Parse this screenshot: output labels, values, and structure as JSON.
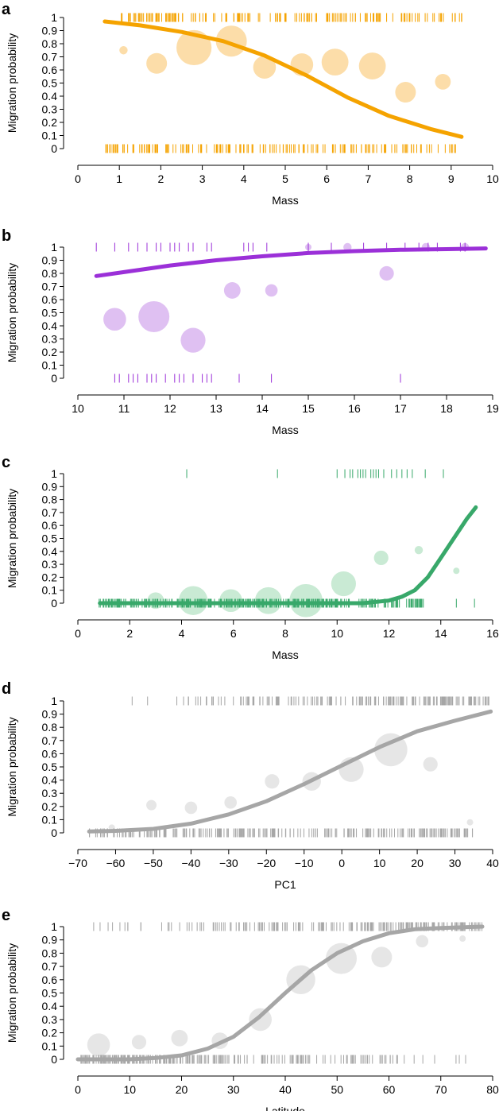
{
  "figure": {
    "panels": [
      "a",
      "b",
      "c",
      "d",
      "e"
    ]
  },
  "chart_data": [
    {
      "panel": "a",
      "type": "scatter",
      "color": "#f5a300",
      "bubble_color": "#fbd79a",
      "xlabel": "Mass",
      "ylabel": "Migration probability",
      "xlim": [
        0,
        10
      ],
      "ylim": [
        0,
        1
      ],
      "xticks": [
        0,
        1,
        2,
        3,
        4,
        5,
        6,
        7,
        8,
        9,
        10
      ],
      "yticks": [
        0,
        0.1,
        0.2,
        0.3,
        0.4,
        0.5,
        0.6,
        0.7,
        0.8,
        0.9,
        1
      ],
      "rug_top": {
        "min": 1.0,
        "max": 9.3,
        "n": 170,
        "mode": "uniform"
      },
      "rug_bottom": {
        "min": 0.6,
        "max": 9.3,
        "n": 170,
        "mode": "uniform"
      },
      "bubbles": [
        {
          "x": 1.1,
          "y": 0.75,
          "size": 0.2
        },
        {
          "x": 1.9,
          "y": 0.65,
          "size": 0.5
        },
        {
          "x": 2.8,
          "y": 0.77,
          "size": 0.85
        },
        {
          "x": 3.7,
          "y": 0.82,
          "size": 0.75
        },
        {
          "x": 4.5,
          "y": 0.62,
          "size": 0.55
        },
        {
          "x": 5.4,
          "y": 0.64,
          "size": 0.55
        },
        {
          "x": 6.2,
          "y": 0.66,
          "size": 0.65
        },
        {
          "x": 7.1,
          "y": 0.63,
          "size": 0.65
        },
        {
          "x": 7.9,
          "y": 0.43,
          "size": 0.5
        },
        {
          "x": 8.8,
          "y": 0.51,
          "size": 0.38
        }
      ],
      "curve": {
        "x": [
          0.65,
          1.5,
          2.5,
          3.5,
          4.5,
          5.5,
          6.5,
          7.5,
          8.5,
          9.25
        ],
        "y": [
          0.97,
          0.94,
          0.89,
          0.82,
          0.71,
          0.56,
          0.39,
          0.25,
          0.15,
          0.09
        ]
      }
    },
    {
      "panel": "b",
      "type": "scatter",
      "color": "#9b30d8",
      "bubble_color": "#d9b5f0",
      "xlabel": "Mass",
      "ylabel": "Migration probability",
      "xlim": [
        10,
        19
      ],
      "ylim": [
        0,
        1
      ],
      "xticks": [
        10,
        11,
        12,
        13,
        14,
        15,
        16,
        17,
        18,
        19
      ],
      "yticks": [
        0,
        0.1,
        0.2,
        0.3,
        0.4,
        0.5,
        0.6,
        0.7,
        0.8,
        0.9,
        1
      ],
      "rug_top": {
        "values": [
          10.4,
          10.8,
          11.1,
          11.3,
          11.5,
          11.7,
          11.8,
          12.0,
          12.1,
          12.2,
          12.4,
          12.5,
          12.8,
          12.9,
          13.6,
          13.7,
          13.8,
          14.1,
          15.0,
          15.5,
          16.2,
          16.7,
          17.1,
          17.4,
          17.6,
          17.8,
          18.3,
          18.4
        ]
      },
      "rug_bottom": {
        "values": [
          10.8,
          10.9,
          11.1,
          11.2,
          11.3,
          11.5,
          11.6,
          11.7,
          11.9,
          12.1,
          12.2,
          12.3,
          12.5,
          12.7,
          12.8,
          12.9,
          13.5,
          14.2,
          17.0
        ]
      },
      "bubbles": [
        {
          "x": 10.8,
          "y": 0.45,
          "size": 0.55
        },
        {
          "x": 11.65,
          "y": 0.47,
          "size": 0.75
        },
        {
          "x": 12.5,
          "y": 0.29,
          "size": 0.6
        },
        {
          "x": 13.35,
          "y": 0.67,
          "size": 0.4
        },
        {
          "x": 14.2,
          "y": 0.67,
          "size": 0.3
        },
        {
          "x": 15.0,
          "y": 1.0,
          "size": 0.12
        },
        {
          "x": 15.85,
          "y": 1.0,
          "size": 0.2
        },
        {
          "x": 16.7,
          "y": 0.8,
          "size": 0.35
        },
        {
          "x": 17.55,
          "y": 1.0,
          "size": 0.2
        },
        {
          "x": 18.4,
          "y": 1.0,
          "size": 0.2
        }
      ],
      "curve": {
        "x": [
          10.4,
          11.0,
          12.0,
          13.0,
          14.0,
          15.0,
          16.0,
          17.0,
          18.0,
          18.85
        ],
        "y": [
          0.78,
          0.81,
          0.86,
          0.9,
          0.93,
          0.955,
          0.97,
          0.98,
          0.985,
          0.99
        ]
      }
    },
    {
      "panel": "c",
      "type": "scatter",
      "color": "#38a86a",
      "bubble_color": "#bfe6cc",
      "xlabel": "Mass",
      "ylabel": "Migration probability",
      "xlim": [
        0,
        16
      ],
      "ylim": [
        0,
        1
      ],
      "xticks": [
        0,
        2,
        4,
        6,
        8,
        10,
        12,
        14,
        16
      ],
      "yticks": [
        0,
        0.1,
        0.2,
        0.3,
        0.4,
        0.5,
        0.6,
        0.7,
        0.8,
        0.9,
        1
      ],
      "rug_top": {
        "values": [
          4.2,
          7.7,
          10.0,
          10.3,
          10.5,
          10.6,
          10.8,
          10.9,
          11.0,
          11.1,
          11.3,
          11.4,
          11.5,
          11.6,
          11.8,
          12.1,
          12.3,
          12.5,
          12.7,
          12.9,
          13.4,
          14.1
        ]
      },
      "rug_bottom": {
        "min": 0.8,
        "max": 13.4,
        "n": 300,
        "mode": "uniform",
        "extra": [
          14.6,
          15.3
        ]
      },
      "bubbles": [
        {
          "x": 3.0,
          "y": 0.02,
          "size": 0.4
        },
        {
          "x": 4.45,
          "y": 0.02,
          "size": 0.7
        },
        {
          "x": 5.9,
          "y": 0.02,
          "size": 0.55
        },
        {
          "x": 7.35,
          "y": 0.02,
          "size": 0.65
        },
        {
          "x": 8.8,
          "y": 0.02,
          "size": 0.8
        },
        {
          "x": 10.25,
          "y": 0.15,
          "size": 0.6
        },
        {
          "x": 11.7,
          "y": 0.35,
          "size": 0.35
        },
        {
          "x": 13.15,
          "y": 0.41,
          "size": 0.2
        },
        {
          "x": 14.6,
          "y": 0.25,
          "size": 0.12
        }
      ],
      "curve": {
        "x": [
          0.85,
          4,
          8,
          11.0,
          12.0,
          12.5,
          13.0,
          13.5,
          14.0,
          14.5,
          15.0,
          15.35
        ],
        "y": [
          0.0,
          0.0,
          0.0,
          0.0,
          0.02,
          0.05,
          0.1,
          0.2,
          0.35,
          0.5,
          0.65,
          0.74
        ]
      }
    },
    {
      "panel": "d",
      "type": "scatter",
      "color": "#a6a6a6",
      "bubble_color": "#e2e2e2",
      "xlabel": "PC1",
      "ylabel": "Migration probability",
      "xlim": [
        -70,
        40
      ],
      "ylim": [
        0,
        1
      ],
      "xticks": [
        -70,
        -60,
        -50,
        -40,
        -30,
        -20,
        -10,
        0,
        10,
        20,
        30,
        40
      ],
      "xticklabels": [
        "−70",
        "−60",
        "−50",
        "−40",
        "−30",
        "−20",
        "−10",
        "0",
        "10",
        "20",
        "30",
        "40"
      ],
      "yticks": [
        0,
        0.1,
        0.2,
        0.3,
        0.4,
        0.5,
        0.6,
        0.7,
        0.8,
        0.9,
        1
      ],
      "rug_top": {
        "min": -60,
        "max": 39,
        "n": 190,
        "mode": "skew_high",
        "extra": [
          27,
          39
        ]
      },
      "rug_bottom": {
        "min": -67,
        "max": 35,
        "n": 260,
        "mode": "uniform"
      },
      "bubbles": [
        {
          "x": -61,
          "y": 0.04,
          "size": 0.15
        },
        {
          "x": -50.5,
          "y": 0.21,
          "size": 0.25
        },
        {
          "x": -40,
          "y": 0.19,
          "size": 0.3
        },
        {
          "x": -29.5,
          "y": 0.23,
          "size": 0.3
        },
        {
          "x": -18.5,
          "y": 0.39,
          "size": 0.35
        },
        {
          "x": -8,
          "y": 0.39,
          "size": 0.45
        },
        {
          "x": 2.5,
          "y": 0.48,
          "size": 0.6
        },
        {
          "x": 13,
          "y": 0.63,
          "size": 0.8
        },
        {
          "x": 23.5,
          "y": 0.52,
          "size": 0.35
        },
        {
          "x": 34,
          "y": 0.08,
          "size": 0.15
        }
      ],
      "curve": {
        "x": [
          -67,
          -60,
          -50,
          -40,
          -30,
          -20,
          -10,
          0,
          10,
          20,
          30,
          39.5
        ],
        "y": [
          0.01,
          0.015,
          0.03,
          0.07,
          0.14,
          0.24,
          0.37,
          0.51,
          0.65,
          0.77,
          0.85,
          0.92
        ]
      }
    },
    {
      "panel": "e",
      "type": "scatter",
      "color": "#a6a6a6",
      "bubble_color": "#e2e2e2",
      "xlabel": "Latitude",
      "ylabel": "Migration probability",
      "xlim": [
        0,
        80
      ],
      "ylim": [
        0,
        1
      ],
      "xticks": [
        0,
        10,
        20,
        30,
        40,
        50,
        60,
        70,
        80
      ],
      "yticks": [
        0,
        0.1,
        0.2,
        0.3,
        0.4,
        0.5,
        0.6,
        0.7,
        0.8,
        0.9,
        1
      ],
      "rug_top": {
        "min": 1,
        "max": 78,
        "n": 200,
        "mode": "skew_high"
      },
      "rug_bottom": {
        "min": 0,
        "max": 77,
        "n": 240,
        "mode": "skew_low"
      },
      "bubbles": [
        {
          "x": 4,
          "y": 0.11,
          "size": 0.55
        },
        {
          "x": 11.8,
          "y": 0.13,
          "size": 0.35
        },
        {
          "x": 19.6,
          "y": 0.16,
          "size": 0.4
        },
        {
          "x": 27.4,
          "y": 0.14,
          "size": 0.4
        },
        {
          "x": 35.2,
          "y": 0.3,
          "size": 0.55
        },
        {
          "x": 43,
          "y": 0.6,
          "size": 0.7
        },
        {
          "x": 50.8,
          "y": 0.76,
          "size": 0.75
        },
        {
          "x": 58.6,
          "y": 0.77,
          "size": 0.5
        },
        {
          "x": 66.4,
          "y": 0.89,
          "size": 0.3
        },
        {
          "x": 74.2,
          "y": 0.91,
          "size": 0.15
        }
      ],
      "curve": {
        "x": [
          0,
          10,
          15,
          20,
          25,
          30,
          35,
          40,
          45,
          50,
          55,
          60,
          65,
          70,
          78
        ],
        "y": [
          0.0,
          0.0,
          0.01,
          0.03,
          0.08,
          0.17,
          0.32,
          0.5,
          0.67,
          0.8,
          0.89,
          0.95,
          0.98,
          0.99,
          1.0
        ]
      }
    }
  ]
}
